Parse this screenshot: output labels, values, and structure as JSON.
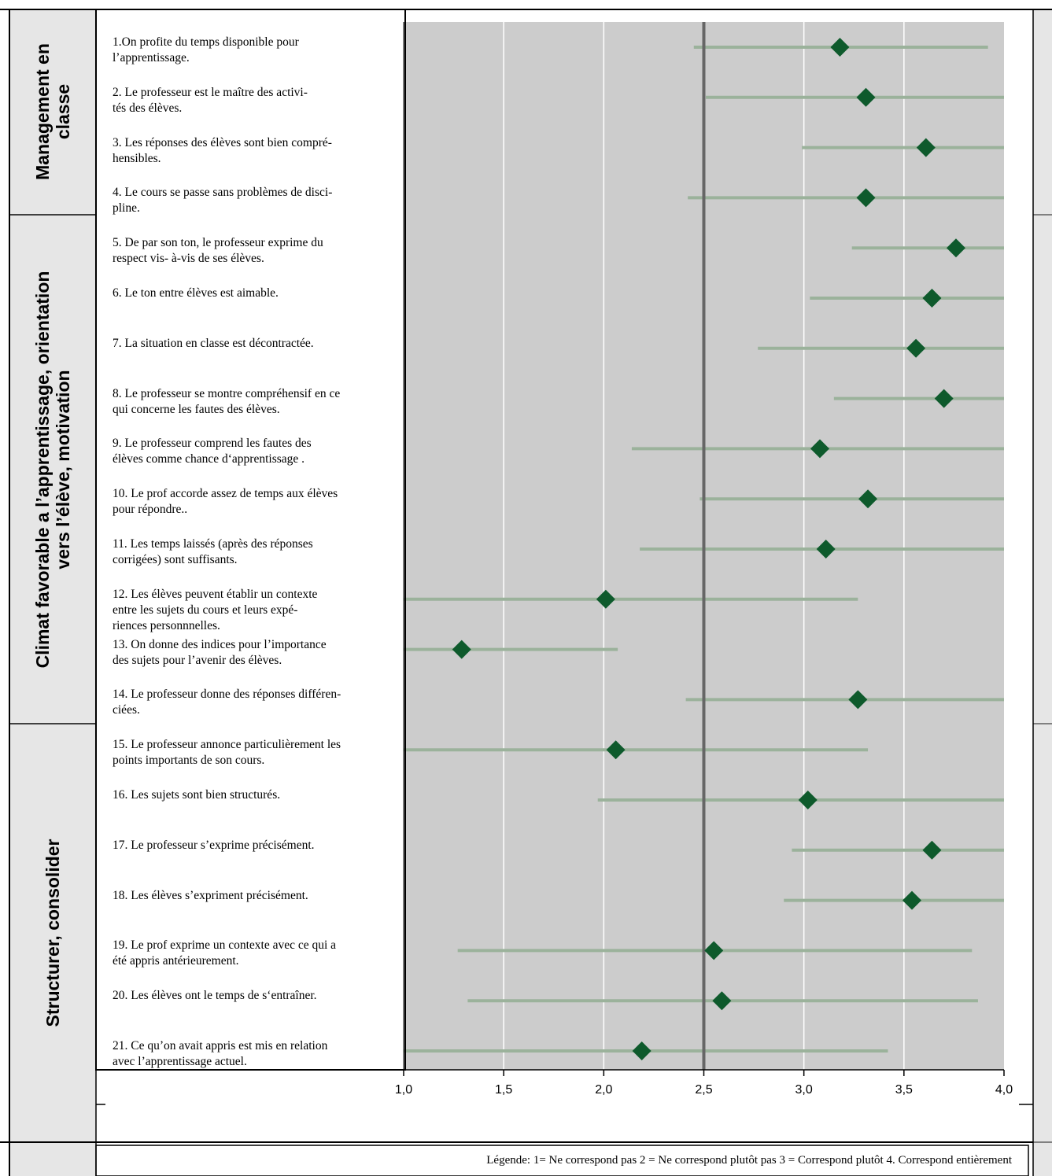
{
  "categories": [
    {
      "label": "Management en\nclasse"
    },
    {
      "label": "Climat favorable a l’apprentissage, orientation\nvers l’élève, motivation"
    },
    {
      "label": "Structurer, consolider"
    }
  ],
  "legend": "Légende:  1= Ne correspond pas     2 = Ne correspond plutôt pas   3 = Correspond plutôt   4. Correspond entièrement",
  "colors": {
    "plot_bg": "#cccccc",
    "range_line": "#9bb29b",
    "marker": "#0e5a2c",
    "reference_line": "#666666"
  },
  "chart_data": {
    "type": "scatter",
    "x_ticks": [
      "1,0",
      "1,5",
      "2,0",
      "2,5",
      "3,0",
      "3,5",
      "4,0"
    ],
    "xlim": [
      1.0,
      4.0
    ],
    "reference_line": 2.5,
    "grid": "vertical",
    "items": [
      {
        "label": "1.On profite du temps disponible pour\n   l’apprentissage.",
        "value": 3.18,
        "low": 2.45,
        "high": 3.92
      },
      {
        "label": "2. Le professeur est le maître des activi-\n    tés des élèves.",
        "value": 3.31,
        "low": 2.51,
        "high": 4.0
      },
      {
        "label": "3. Les réponses des élèves sont bien compré-\n    hensibles.",
        "value": 3.61,
        "low": 2.99,
        "high": 4.0
      },
      {
        "label": "4. Le cours se passe sans problèmes de disci-\n    pline.",
        "value": 3.31,
        "low": 2.42,
        "high": 4.0
      },
      {
        "label": "5. De par son ton, le professeur exprime du\n    respect vis- à-vis de ses élèves.",
        "value": 3.76,
        "low": 3.24,
        "high": 4.0
      },
      {
        "label": "6. Le ton entre élèves est aimable.",
        "value": 3.64,
        "low": 3.03,
        "high": 4.0
      },
      {
        "label": "7. La situation en classe est décontractée.",
        "value": 3.56,
        "low": 2.77,
        "high": 4.0
      },
      {
        "label": "8. Le professeur se montre compréhensif en ce\n    qui concerne les fautes des élèves.",
        "value": 3.7,
        "low": 3.15,
        "high": 4.0
      },
      {
        "label": "9. Le professeur comprend les fautes des\n    élèves comme chance d‘apprentissage .",
        "value": 3.08,
        "low": 2.14,
        "high": 4.0
      },
      {
        "label": "10. Le prof accorde assez de temps aux élèves\n     pour répondre..",
        "value": 3.32,
        "low": 2.48,
        "high": 4.0
      },
      {
        "label": "11. Les temps laissés (après des réponses\n     corrigées) sont suffisants.",
        "value": 3.11,
        "low": 2.18,
        "high": 4.0
      },
      {
        "label": "12. Les élèves peuvent établir un contexte\n     entre les sujets du cours et leurs expé-\n     riences personnnelles.",
        "value": 2.01,
        "low": 1.0,
        "high": 3.27
      },
      {
        "label": "13. On donne des indices pour l’importance\n     des sujets pour l’avenir des élèves.",
        "value": 1.29,
        "low": 1.0,
        "high": 2.07
      },
      {
        "label": "14. Le professeur donne des réponses différen-\n     ciées.",
        "value": 3.27,
        "low": 2.41,
        "high": 4.0
      },
      {
        "label": "15. Le professeur annonce particulièrement les\n     points importants de son cours.",
        "value": 2.06,
        "low": 1.0,
        "high": 3.32
      },
      {
        "label": "16. Les sujets sont bien structurés.",
        "value": 3.02,
        "low": 1.97,
        "high": 4.0
      },
      {
        "label": "17. Le professeur s’exprime précisément.",
        "value": 3.64,
        "low": 2.94,
        "high": 4.0
      },
      {
        "label": "18. Les élèves s’expriment précisément.",
        "value": 3.54,
        "low": 2.9,
        "high": 4.0
      },
      {
        "label": "19. Le prof exprime un contexte avec ce qui a\n     été appris antérieurement.",
        "value": 2.55,
        "low": 1.27,
        "high": 3.84
      },
      {
        "label": "20. Les élèves ont le temps de s‘entraîner.",
        "value": 2.59,
        "low": 1.32,
        "high": 3.87
      },
      {
        "label": "21. Ce qu’on avait appris est mis en relation\n     avec  l’apprentissage actuel.",
        "value": 2.19,
        "low": 1.0,
        "high": 3.42
      }
    ]
  }
}
